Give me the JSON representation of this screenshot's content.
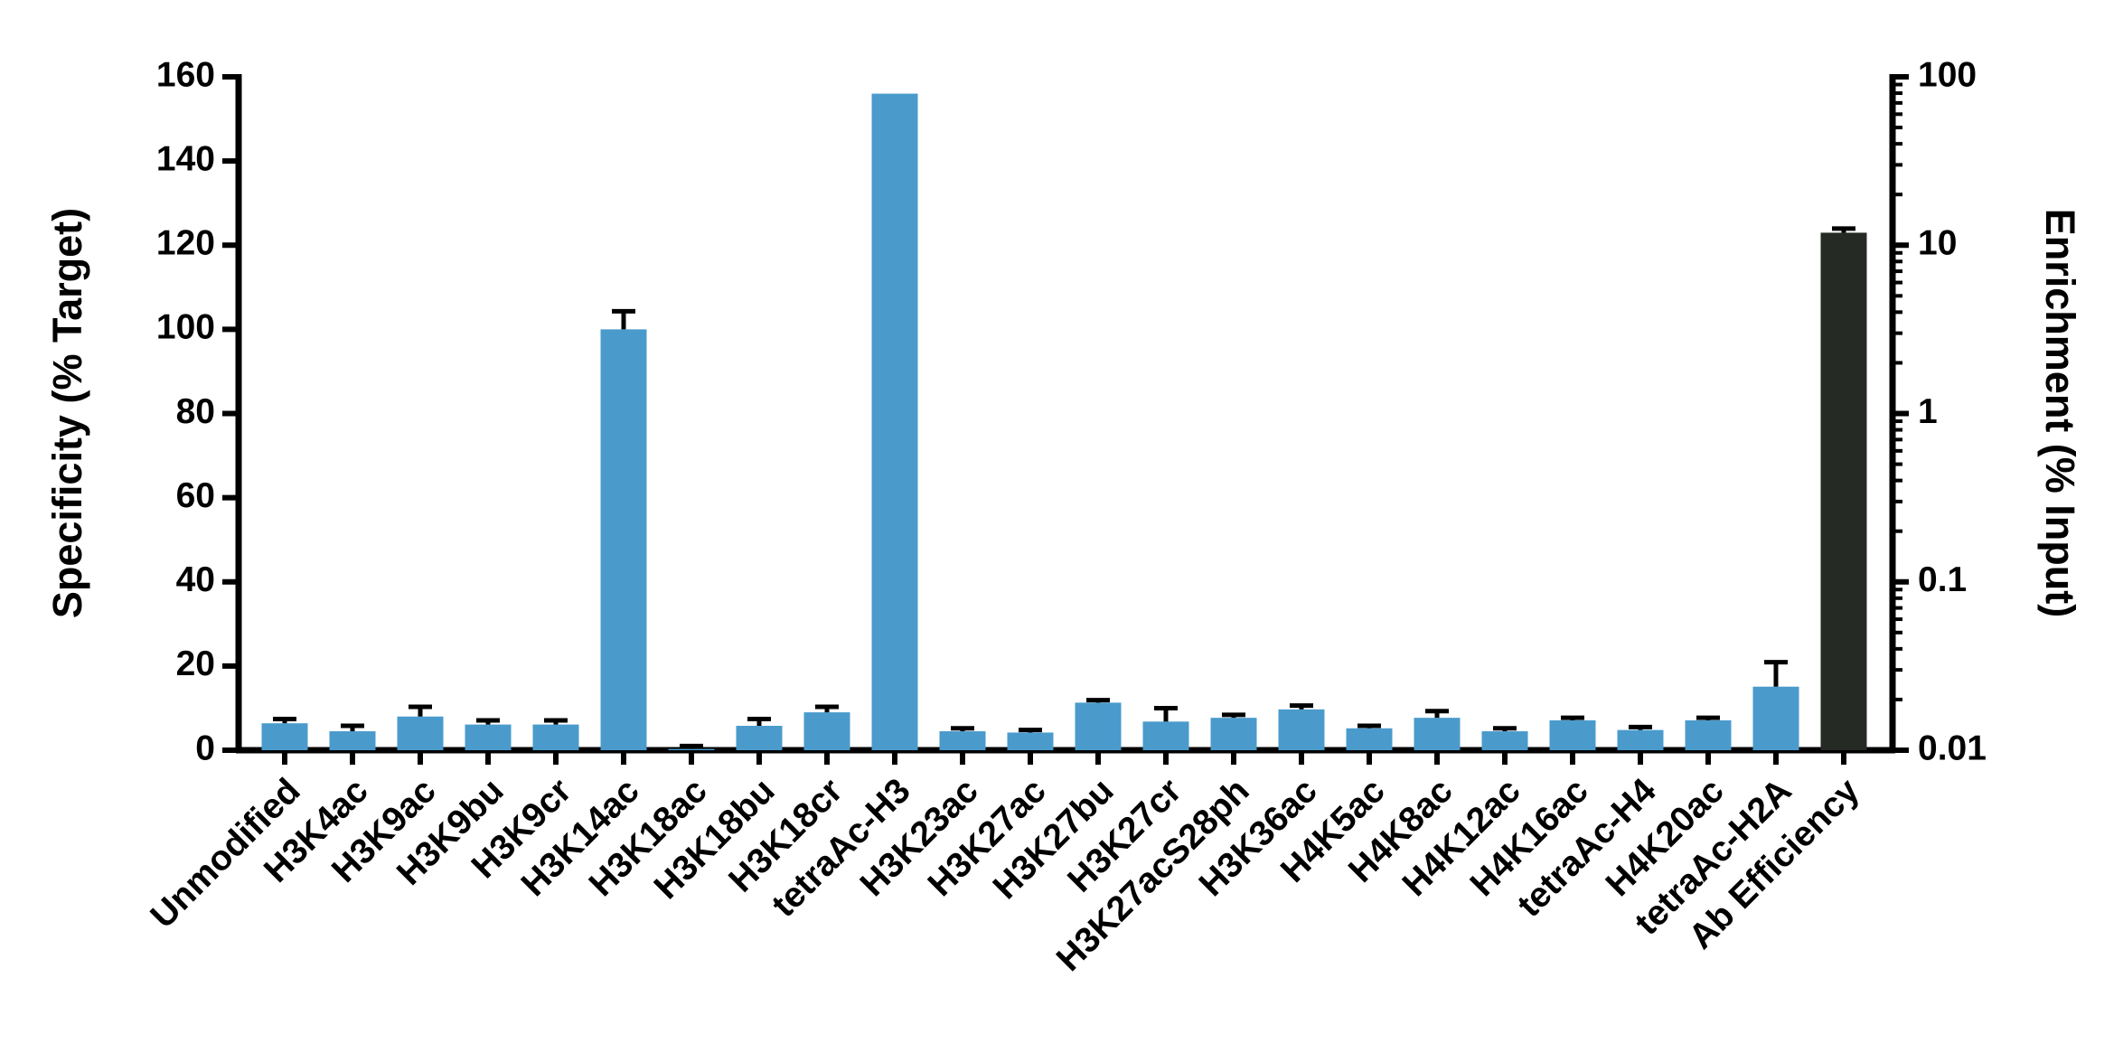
{
  "chart_data": {
    "type": "bar",
    "y_label": "Specificity (% Target)",
    "y2_label": "Enrichment (% Input)",
    "categories": [
      "Unmodified",
      "H3K4ac",
      "H3K9ac",
      "H3K9bu",
      "H3K9cr",
      "H3K14ac",
      "H3K18ac",
      "H3K18bu",
      "H3K18cr",
      "tetraAc-H3",
      "H3K23ac",
      "H3K27ac",
      "H3K27bu",
      "H3K27cr",
      "H3K27acS28ph",
      "H3K36ac",
      "H4K5ac",
      "H4K8ac",
      "H4K12ac",
      "H4K16ac",
      "tetraAc-H4",
      "H4K20ac",
      "tetraAc-H2A",
      "Ab Efficiency"
    ],
    "series": [
      {
        "color": "#4a9bcc",
        "values": [
          6.4,
          4.5,
          8,
          6.1,
          6.1,
          100,
          0.3,
          5.8,
          9,
          156,
          4.5,
          4.2,
          11.3,
          6.8,
          7.7,
          9.7,
          5.2,
          7.7,
          4.5,
          7.1,
          4.8,
          7.1,
          15.1,
          null
        ],
        "errors": [
          1.0,
          1.3,
          2.3,
          1.0,
          1.0,
          4.3,
          0.7,
          1.6,
          1.3,
          null,
          0.7,
          0.6,
          0.6,
          3.2,
          0.7,
          0.9,
          0.6,
          1.6,
          0.7,
          0.6,
          0.7,
          0.6,
          5.8,
          null
        ]
      },
      {
        "color": "#252a25",
        "axis": "y2",
        "values": [
          null,
          null,
          null,
          null,
          null,
          null,
          null,
          null,
          null,
          null,
          null,
          null,
          null,
          null,
          null,
          null,
          null,
          null,
          null,
          null,
          null,
          null,
          null,
          11.86
        ],
        "errors": [
          null,
          null,
          null,
          null,
          null,
          null,
          null,
          null,
          null,
          null,
          null,
          null,
          null,
          null,
          null,
          null,
          null,
          null,
          null,
          null,
          null,
          null,
          null,
          0.7
        ]
      }
    ],
    "ylim": [
      0,
      160
    ],
    "yticks": [
      0,
      20,
      40,
      60,
      80,
      100,
      120,
      140,
      160
    ],
    "y2lim": [
      0.01,
      100
    ],
    "y2ticks": [
      0.01,
      0.1,
      1,
      10,
      100
    ],
    "y2log": true
  }
}
